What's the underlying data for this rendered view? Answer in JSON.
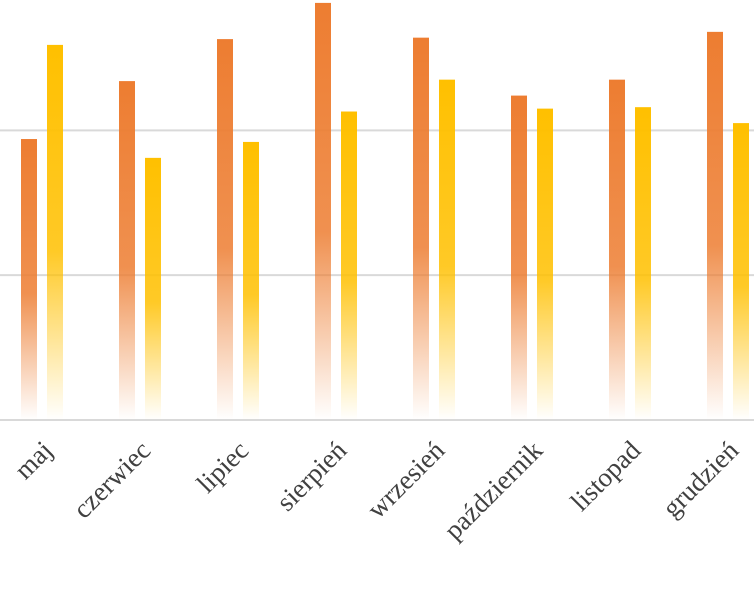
{
  "chart_data": {
    "type": "bar",
    "categories": [
      "maj",
      "czerwiec",
      "lipiec",
      "sierpień",
      "wrzesień",
      "październik",
      "listopad",
      "grudzień"
    ],
    "series": [
      {
        "color": "#ED7D31",
        "values": [
          1.94,
          2.34,
          2.63,
          2.88,
          2.64,
          2.24,
          2.35,
          2.68
        ]
      },
      {
        "color": "#FFC000",
        "values": [
          2.59,
          1.81,
          1.92,
          2.13,
          2.35,
          2.15,
          2.16,
          2.05
        ]
      }
    ],
    "ylim": [
      0,
      2.9
    ],
    "yticks": [
      0,
      1,
      2
    ],
    "grid": true
  }
}
